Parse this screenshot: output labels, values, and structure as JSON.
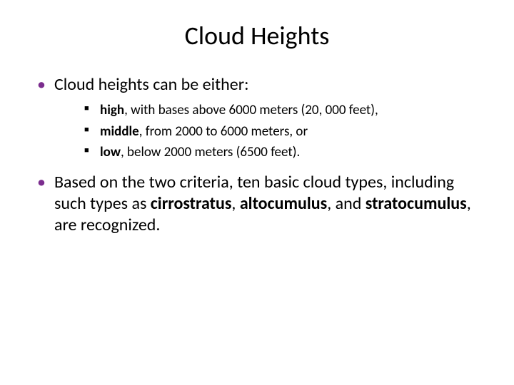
{
  "colors": {
    "background": "#ffffff",
    "text": "#000000",
    "level1_bullet": "#7b2d8e",
    "level2_bullet": "#000000"
  },
  "typography": {
    "font_family": "Calibri",
    "title_fontsize": 36,
    "level1_fontsize": 24,
    "level2_fontsize": 19
  },
  "title": "Cloud Heights",
  "bullets": [
    {
      "text": "Cloud heights can be either:",
      "sub": [
        {
          "bold": "high",
          "rest": ", with bases above 6000 meters (20, 000 feet),"
        },
        {
          "bold": "middle",
          "rest": ", from 2000 to 6000 meters, or"
        },
        {
          "bold": "low",
          "rest": ", below 2000 meters (6500 feet)."
        }
      ]
    },
    {
      "pre": "Based on the two criteria, ten basic cloud types, including such types as ",
      "bold1": "cirrostratus",
      "mid1": ", ",
      "bold2": "altocumulus",
      "mid2": ", and ",
      "bold3": "stratocumulus",
      "post": ", are recognized."
    }
  ]
}
